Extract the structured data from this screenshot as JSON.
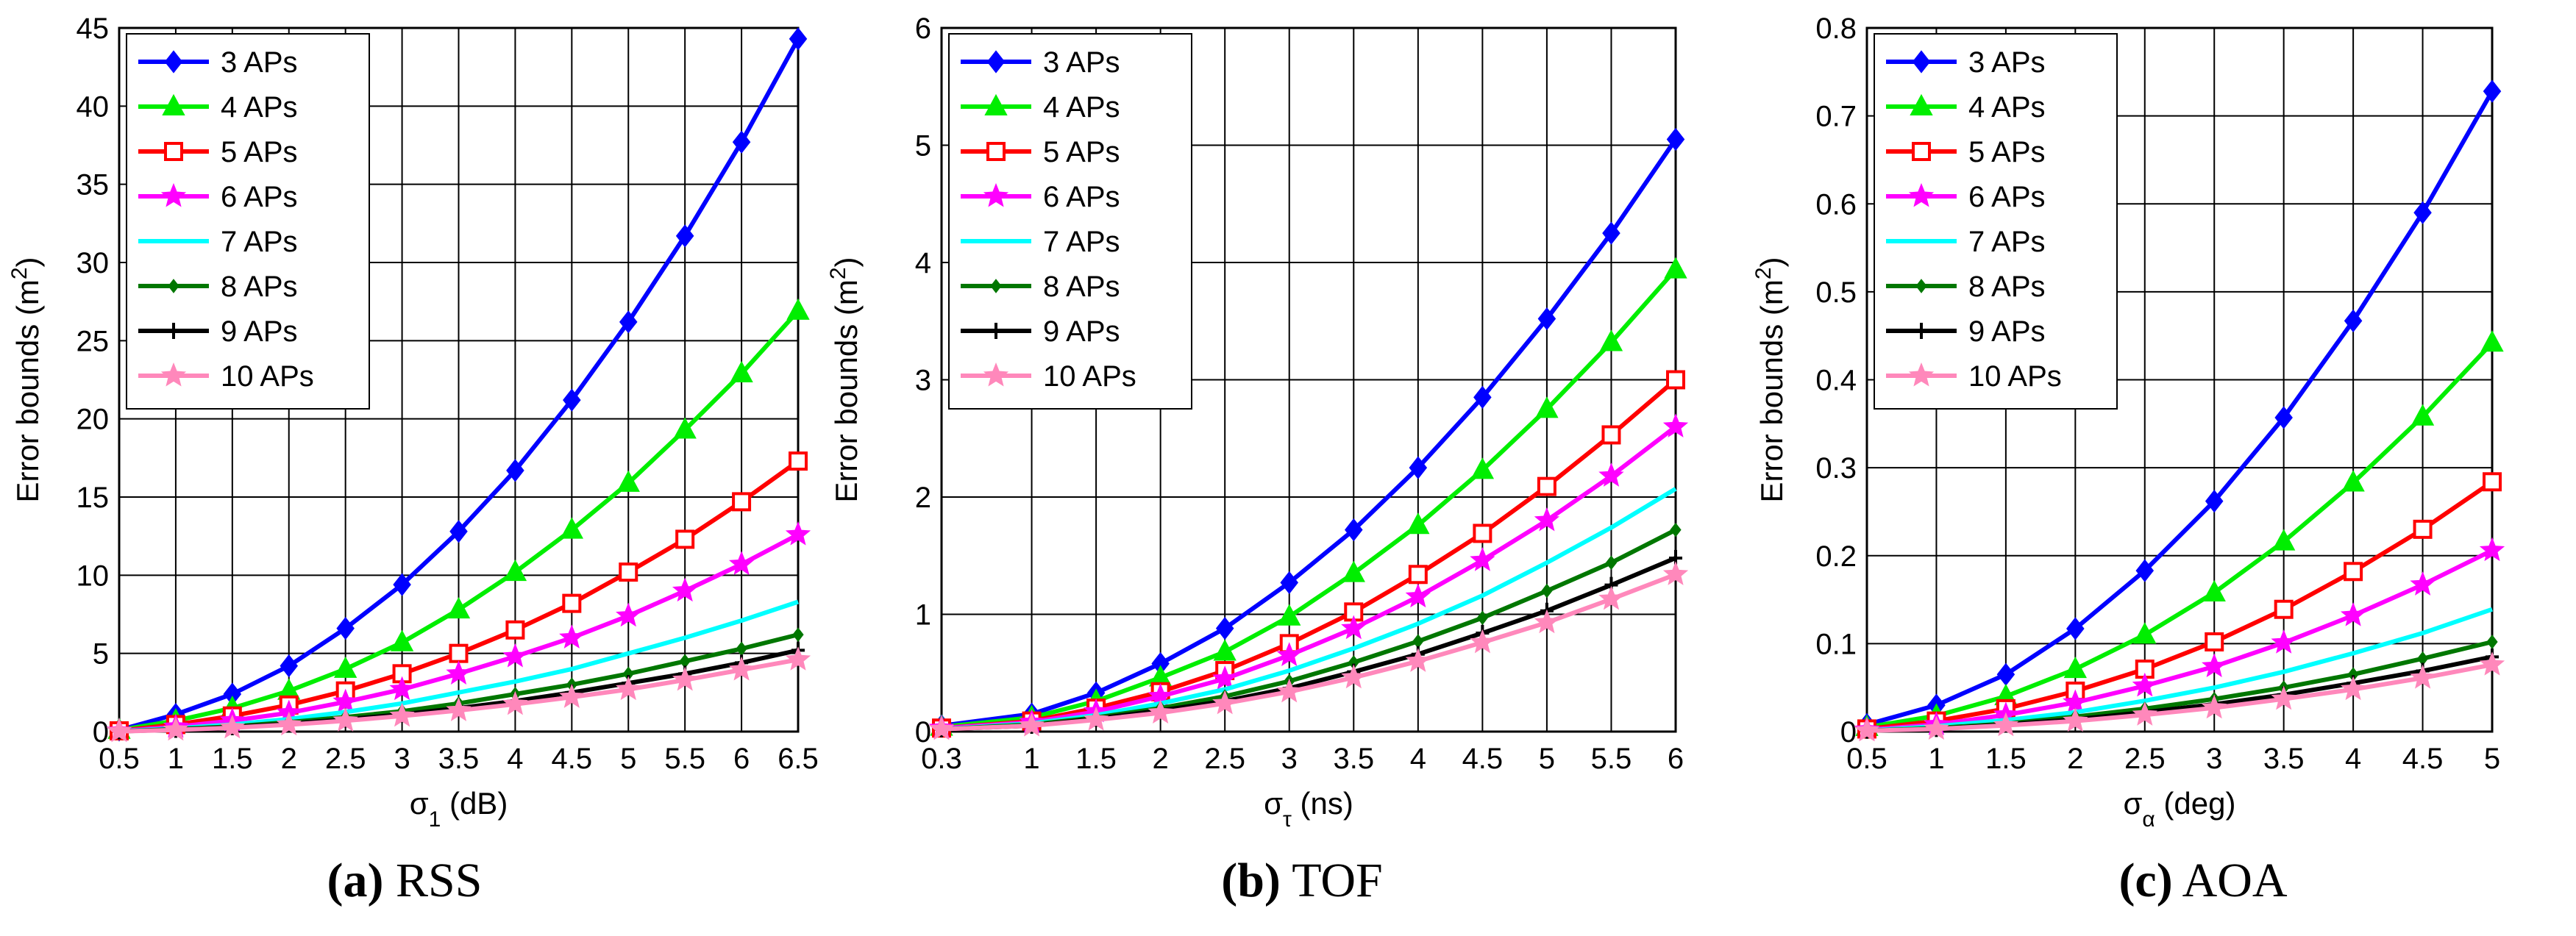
{
  "chart_data": [
    {
      "type": "line",
      "ylabel": "Error bounds (m²)",
      "xlabel": "σ₁ (dB)",
      "x": [
        0.5,
        1,
        1.5,
        2,
        2.5,
        3,
        3.5,
        4,
        4.5,
        5,
        5.5,
        6,
        6.5
      ],
      "xlim": [
        0.5,
        6.5
      ],
      "ylim": [
        0,
        45
      ],
      "xticks": [
        "0.5",
        "1",
        "1.5",
        "2",
        "2.5",
        "3",
        "3.5",
        "4",
        "4.5",
        "5",
        "5.5",
        "6",
        "6.5"
      ],
      "yticks": [
        "0",
        "5",
        "10",
        "15",
        "20",
        "25",
        "30",
        "35",
        "40",
        "45"
      ],
      "grid": true,
      "legend": "top-left",
      "caption_letter": "(a)",
      "caption_text": "RSS",
      "series": [
        {
          "name": "3 APs",
          "values": [
            0.1,
            1.1,
            2.4,
            4.2,
            6.6,
            9.4,
            12.8,
            16.7,
            21.2,
            26.2,
            31.7,
            37.7,
            44.3
          ]
        },
        {
          "name": "4 APs",
          "values": [
            0.1,
            0.7,
            1.5,
            2.6,
            4.0,
            5.7,
            7.8,
            10.2,
            12.9,
            15.9,
            19.3,
            22.9,
            26.9
          ]
        },
        {
          "name": "5 APs",
          "values": [
            0.05,
            0.45,
            1.0,
            1.7,
            2.6,
            3.7,
            5.0,
            6.5,
            8.2,
            10.2,
            12.3,
            14.7,
            17.3
          ]
        },
        {
          "name": "6 APs",
          "values": [
            0.04,
            0.3,
            0.7,
            1.2,
            1.9,
            2.7,
            3.7,
            4.8,
            6.0,
            7.4,
            9.0,
            10.7,
            12.6
          ]
        },
        {
          "name": "7 APs",
          "values": [
            0.03,
            0.2,
            0.45,
            0.8,
            1.25,
            1.8,
            2.5,
            3.2,
            4.0,
            5.0,
            6.0,
            7.1,
            8.3
          ]
        },
        {
          "name": "8 APs",
          "values": [
            0.02,
            0.15,
            0.33,
            0.6,
            0.93,
            1.3,
            1.8,
            2.4,
            3.0,
            3.7,
            4.5,
            5.3,
            6.2
          ]
        },
        {
          "name": "9 APs",
          "values": [
            0.02,
            0.12,
            0.28,
            0.5,
            0.78,
            1.1,
            1.5,
            1.95,
            2.5,
            3.1,
            3.7,
            4.4,
            5.2
          ]
        },
        {
          "name": "10 APs",
          "values": [
            0.01,
            0.11,
            0.25,
            0.44,
            0.69,
            1.0,
            1.35,
            1.75,
            2.2,
            2.7,
            3.3,
            3.95,
            4.6
          ]
        }
      ]
    },
    {
      "type": "line",
      "ylabel": "Error bounds (m²)",
      "xlabel": "στ (ns)",
      "x": [
        0.3,
        1,
        1.5,
        2,
        2.5,
        3,
        3.5,
        4,
        4.5,
        5,
        5.5,
        6
      ],
      "xlim": [
        0.3,
        6
      ],
      "ylim": [
        0,
        6
      ],
      "xticks": [
        "0.3",
        "1",
        "1.5",
        "2",
        "2.5",
        "3",
        "3.5",
        "4",
        "4.5",
        "5",
        "5.5",
        "6"
      ],
      "yticks": [
        "0",
        "1",
        "2",
        "3",
        "4",
        "5",
        "6"
      ],
      "grid": true,
      "legend": "top-left",
      "caption_letter": "(b)",
      "caption_text": "TOF",
      "series": [
        {
          "name": "3 APs",
          "values": [
            0.05,
            0.15,
            0.33,
            0.58,
            0.88,
            1.27,
            1.72,
            2.25,
            2.85,
            3.52,
            4.25,
            5.05
          ]
        },
        {
          "name": "4 APs",
          "values": [
            0.04,
            0.12,
            0.26,
            0.46,
            0.68,
            0.98,
            1.35,
            1.76,
            2.23,
            2.75,
            3.32,
            3.94
          ]
        },
        {
          "name": "5 APs",
          "values": [
            0.03,
            0.09,
            0.2,
            0.34,
            0.52,
            0.75,
            1.02,
            1.34,
            1.69,
            2.09,
            2.53,
            3.0
          ]
        },
        {
          "name": "6 APs",
          "values": [
            0.03,
            0.08,
            0.17,
            0.3,
            0.45,
            0.65,
            0.88,
            1.15,
            1.46,
            1.8,
            2.18,
            2.6
          ]
        },
        {
          "name": "7 APs",
          "values": [
            0.02,
            0.07,
            0.14,
            0.24,
            0.36,
            0.52,
            0.71,
            0.92,
            1.16,
            1.44,
            1.74,
            2.07
          ]
        },
        {
          "name": "8 APs",
          "values": [
            0.02,
            0.06,
            0.12,
            0.2,
            0.3,
            0.43,
            0.59,
            0.77,
            0.97,
            1.2,
            1.44,
            1.72
          ]
        },
        {
          "name": "9 APs",
          "values": [
            0.02,
            0.05,
            0.11,
            0.18,
            0.26,
            0.37,
            0.51,
            0.66,
            0.84,
            1.03,
            1.25,
            1.48
          ]
        },
        {
          "name": "10 APs",
          "values": [
            0.02,
            0.05,
            0.1,
            0.16,
            0.24,
            0.34,
            0.46,
            0.6,
            0.76,
            0.93,
            1.13,
            1.34
          ]
        }
      ]
    },
    {
      "type": "line",
      "ylabel": "Error bounds (m²)",
      "xlabel": "σα (deg)",
      "x": [
        0.5,
        1,
        1.5,
        2,
        2.5,
        3,
        3.5,
        4,
        4.5,
        5
      ],
      "xlim": [
        0.5,
        5
      ],
      "ylim": [
        0,
        0.8
      ],
      "xticks": [
        "0.5",
        "1",
        "1.5",
        "2",
        "2.5",
        "3",
        "3.5",
        "4",
        "4.5",
        "5"
      ],
      "yticks": [
        "0",
        "0.1",
        "0.2",
        "0.3",
        "0.4",
        "0.5",
        "0.6",
        "0.7",
        "0.8"
      ],
      "grid": true,
      "legend": "top-left",
      "caption_letter": "(c)",
      "caption_text": "AOA",
      "series": [
        {
          "name": "3 APs",
          "values": [
            0.008,
            0.03,
            0.065,
            0.117,
            0.183,
            0.262,
            0.357,
            0.467,
            0.59,
            0.728
          ]
        },
        {
          "name": "4 APs",
          "values": [
            0.005,
            0.018,
            0.04,
            0.071,
            0.11,
            0.158,
            0.216,
            0.283,
            0.358,
            0.442
          ]
        },
        {
          "name": "5 APs",
          "values": [
            0.003,
            0.012,
            0.026,
            0.046,
            0.071,
            0.102,
            0.139,
            0.182,
            0.23,
            0.284
          ]
        },
        {
          "name": "6 APs",
          "values": [
            0.002,
            0.008,
            0.019,
            0.033,
            0.052,
            0.074,
            0.101,
            0.132,
            0.167,
            0.206
          ]
        },
        {
          "name": "7 APs",
          "values": [
            0.001,
            0.006,
            0.013,
            0.022,
            0.035,
            0.05,
            0.068,
            0.089,
            0.112,
            0.139
          ]
        },
        {
          "name": "8 APs",
          "values": [
            0.001,
            0.004,
            0.009,
            0.017,
            0.026,
            0.037,
            0.05,
            0.065,
            0.083,
            0.102
          ]
        },
        {
          "name": "9 APs",
          "values": [
            0.001,
            0.003,
            0.008,
            0.014,
            0.022,
            0.031,
            0.042,
            0.055,
            0.069,
            0.085
          ]
        },
        {
          "name": "10 APs",
          "values": [
            0.001,
            0.003,
            0.007,
            0.012,
            0.019,
            0.027,
            0.037,
            0.048,
            0.061,
            0.076
          ]
        }
      ]
    }
  ],
  "styles": {
    "colors": [
      "#0000ff",
      "#00ee00",
      "#ff0000",
      "#ff00ff",
      "#00ffff",
      "#007700",
      "#000000",
      "#ff88bb"
    ],
    "markers": [
      "diamond",
      "triangle",
      "square",
      "star",
      "none",
      "dot",
      "plus",
      "star"
    ]
  }
}
